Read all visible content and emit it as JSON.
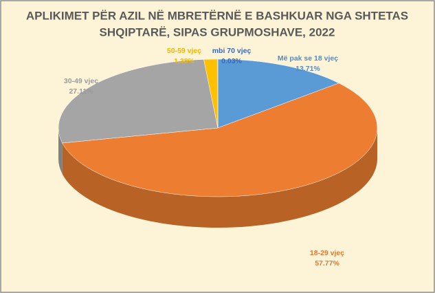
{
  "chart_data": {
    "type": "pie",
    "title": [
      "APLIKIMET PËR AZIL NË MBRETËRNË E BASHKUAR NGA SHTETAS",
      "SHQIPTARË, SIPAS GRUPMOSHAVE, 2022"
    ],
    "categories": [
      "Më pak se 18 vjeç",
      "18-29 vjeç",
      "30-49 vjeç",
      "50-59 vjeç",
      "mbi 70 vjeç"
    ],
    "values": [
      13.71,
      57.77,
      27.11,
      1.38,
      0.03
    ],
    "value_labels": [
      "13.71%",
      "57.77%",
      "27.11%",
      "1.38%",
      "0.03%"
    ],
    "colors": [
      "#5b9bd5",
      "#ed7d31",
      "#a5a5a5",
      "#ffc000",
      "#264478"
    ],
    "label_colors": [
      "#4f8ccc",
      "#e6782c",
      "#9a9a9a",
      "#f2b600",
      "#3a68b8"
    ]
  }
}
